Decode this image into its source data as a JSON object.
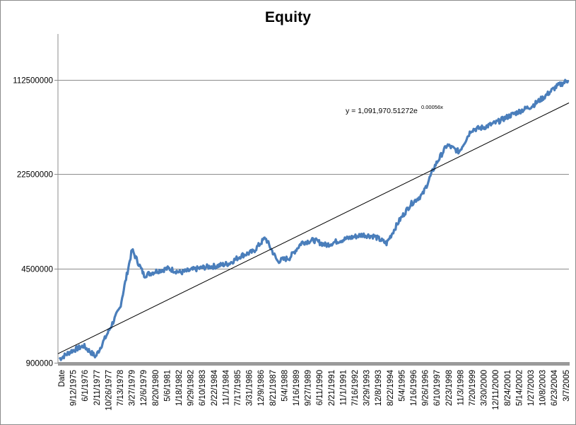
{
  "chart_data": {
    "type": "line",
    "title": "Equity",
    "xlabel": "",
    "ylabel": "",
    "yscale": "log",
    "ylim": [
      900000,
      112500000
    ],
    "y_ticks": [
      "900000",
      "4500000",
      "22500000",
      "112500000"
    ],
    "y_tick_values": [
      900000,
      4500000,
      22500000,
      112500000
    ],
    "grid": {
      "horizontal": true,
      "vertical": false
    },
    "legend": null,
    "x_tick_labels": [
      "Date",
      "9/12/1975",
      "6/1/1976",
      "2/11/1977",
      "10/26/1977",
      "7/13/1978",
      "3/27/1979",
      "12/6/1979",
      "8/20/1980",
      "5/6/1981",
      "1/18/1982",
      "9/29/1982",
      "6/10/1983",
      "2/22/1984",
      "11/1/1984",
      "7/17/1985",
      "3/31/1986",
      "12/9/1986",
      "8/21/1987",
      "5/4/1988",
      "1/16/1989",
      "9/27/1989",
      "6/11/1990",
      "2/21/1991",
      "11/1/1991",
      "7/16/1992",
      "3/29/1993",
      "12/8/1993",
      "8/22/1994",
      "5/4/1995",
      "1/16/1996",
      "9/26/1996",
      "6/10/1997",
      "2/23/1998",
      "11/3/1998",
      "7/20/1999",
      "3/30/2000",
      "12/11/2000",
      "8/24/2001",
      "5/14/2002",
      "1/27/2003",
      "10/8/2003",
      "6/23/2004",
      "3/7/2005"
    ],
    "series": [
      {
        "name": "Equity",
        "color": "#4a7ebb",
        "x_dates": [
          "9/12/1975",
          "6/1/1976",
          "2/11/1977",
          "10/26/1977",
          "7/13/1978",
          "3/27/1979",
          "12/6/1979",
          "8/20/1980",
          "5/6/1981",
          "1/18/1982",
          "9/29/1982",
          "6/10/1983",
          "2/22/1984",
          "11/1/1984",
          "7/17/1985",
          "3/31/1986",
          "12/9/1986",
          "8/21/1987",
          "5/4/1988",
          "1/16/1989",
          "9/27/1989",
          "6/11/1990",
          "2/21/1991",
          "11/1/1991",
          "7/16/1992",
          "3/29/1993",
          "12/8/1993",
          "8/22/1994",
          "5/4/1995",
          "1/16/1996",
          "9/26/1996",
          "6/10/1997",
          "2/23/1998",
          "11/3/1998",
          "7/20/1999",
          "3/30/2000",
          "12/11/2000",
          "8/24/2001",
          "5/14/2002",
          "1/27/2003",
          "10/8/2003",
          "6/23/2004",
          "3/7/2005"
        ],
        "values": [
          960000,
          1100000,
          1200000,
          1000000,
          1500000,
          2300000,
          6200000,
          4000000,
          4300000,
          4500000,
          4200000,
          4400000,
          4600000,
          4700000,
          4900000,
          5600000,
          6000000,
          7600000,
          5100000,
          5400000,
          7000000,
          7300000,
          6700000,
          7200000,
          7600000,
          8000000,
          7800000,
          6900000,
          10000000,
          13500000,
          16000000,
          26000000,
          37000000,
          33000000,
          48000000,
          50000000,
          54000000,
          60000000,
          66000000,
          72000000,
          84000000,
          100000000,
          112000000
        ]
      }
    ],
    "trendline": {
      "type": "exponential",
      "equation_main": "y = 1,091,970.51272e",
      "equation_exp": "0.00056x",
      "color": "#000000",
      "start_value": 1050000,
      "end_value": 76000000
    }
  }
}
